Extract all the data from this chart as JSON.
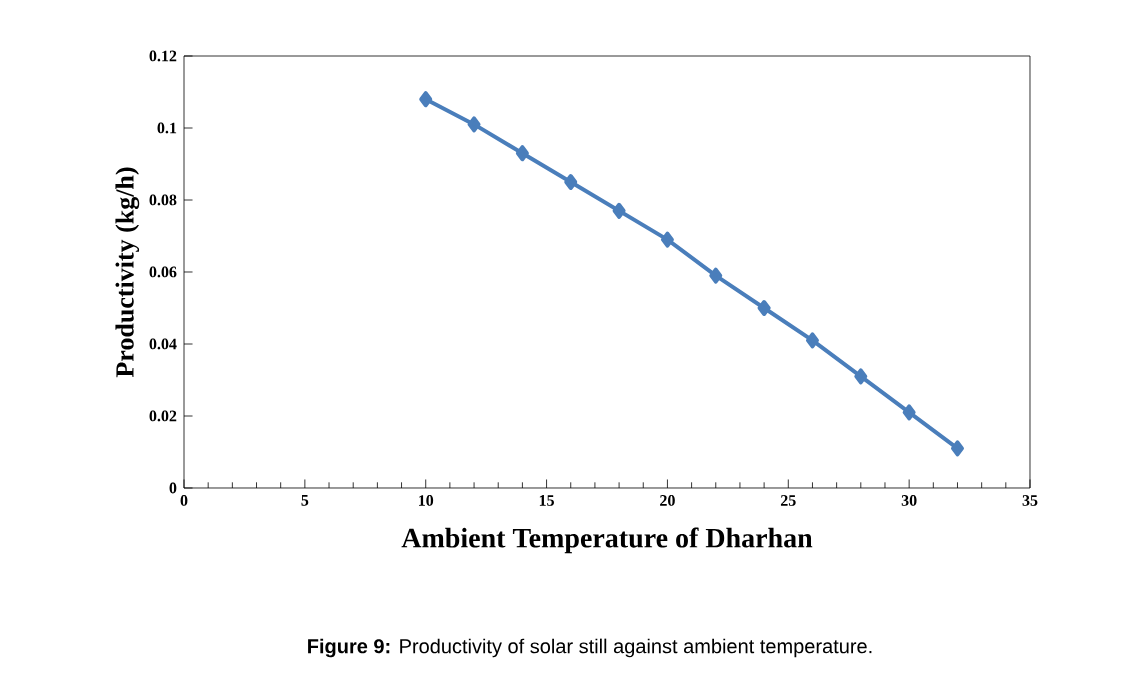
{
  "chart_data": {
    "type": "line",
    "xlabel": "Ambient  Temperature  of Dharhan",
    "ylabel": "Productivity  (kg/h)",
    "annotations": [
      "**Figure 9:** Productivity of solar still against ambient temperature."
    ],
    "x": [
      10,
      12,
      14,
      16,
      18,
      20,
      22,
      24,
      26,
      28,
      30,
      32
    ],
    "series": [
      {
        "color": "#4a7ebb",
        "values": [
          0.108,
          0.101,
          0.093,
          0.085,
          0.077,
          0.069,
          0.059,
          0.05,
          0.041,
          0.031,
          0.021,
          0.011
        ]
      }
    ],
    "xlim": [
      0,
      35
    ],
    "xticks": [
      0,
      5,
      10,
      15,
      20,
      25,
      30,
      35
    ],
    "ylim": [
      0,
      0.12
    ],
    "yticks": [
      0,
      0.02,
      0.04,
      0.06,
      0.08,
      0.1,
      0.12
    ],
    "marker": "diamond",
    "line_style": "solid",
    "grid": false
  }
}
